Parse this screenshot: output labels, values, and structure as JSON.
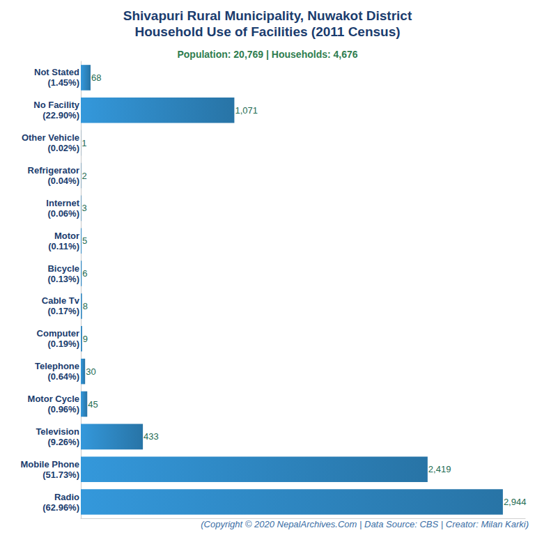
{
  "chart_data": {
    "type": "bar",
    "title": "Shivapuri Rural Municipality, Nuwakot District\nHousehold Use of Facilities (2011 Census)",
    "subtitle": "Population: 20,769 | Households: 4,676",
    "footer": "(Copyright © 2020 NepalArchives.Com | Data Source: CBS | Creator: Milan Karki)",
    "orientation": "horizontal",
    "categories": [
      "Not Stated\n(1.45%)",
      "No Facility\n(22.90%)",
      "Other Vehicle\n(0.02%)",
      "Refrigerator\n(0.04%)",
      "Internet\n(0.06%)",
      "Motor\n(0.11%)",
      "Bicycle\n(0.13%)",
      "Cable Tv\n(0.17%)",
      "Computer\n(0.19%)",
      "Telephone\n(0.64%)",
      "Motor Cycle\n(0.96%)",
      "Television\n(9.26%)",
      "Mobile Phone\n(51.73%)",
      "Radio\n(62.96%)"
    ],
    "values": [
      68,
      1071,
      1,
      2,
      3,
      5,
      6,
      8,
      9,
      30,
      45,
      433,
      2419,
      2944
    ],
    "value_labels": [
      "68",
      "1,071",
      "1",
      "2",
      "3",
      "5",
      "6",
      "8",
      "9",
      "30",
      "45",
      "433",
      "2,419",
      "2,944"
    ],
    "color": "#3498db",
    "xlim": [
      0,
      3100
    ],
    "xticks": [],
    "tick_labels": "y",
    "grid": false,
    "data_labels": true
  }
}
